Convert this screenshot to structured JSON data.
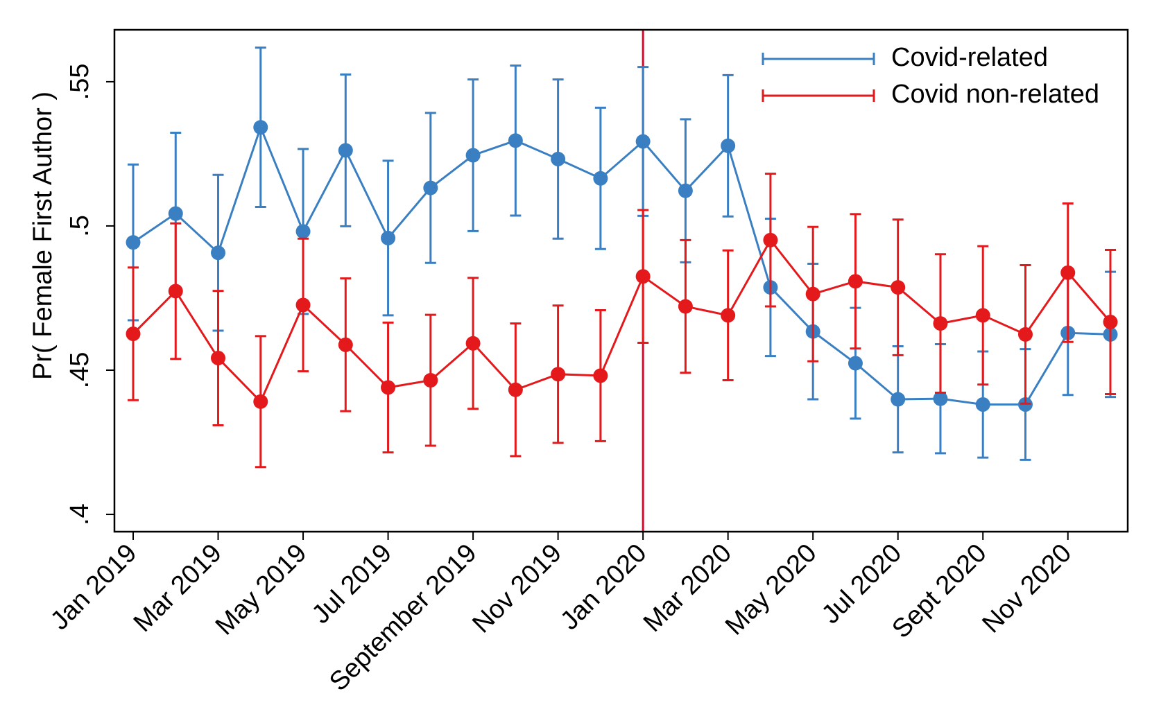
{
  "chart_data": {
    "type": "line",
    "y_label": "Pr( Female First Author )",
    "categories": [
      "Jan 2019",
      null,
      "Mar 2019",
      null,
      "May 2019",
      null,
      "Jul 2019",
      null,
      "September 2019",
      null,
      "Nov 2019",
      null,
      "Jan 2020",
      null,
      "Mar 2020",
      null,
      "May 2020",
      null,
      "Jul 2020",
      null,
      "Sept 2020",
      null,
      "Nov 2020",
      null
    ],
    "series": [
      {
        "name": "Covid-related",
        "color": "#3a7fc1",
        "values": [
          0.4943,
          0.5043,
          0.4907,
          0.5342,
          0.4981,
          0.5262,
          0.4958,
          0.5132,
          0.5245,
          0.5296,
          0.5232,
          0.5165,
          0.5293,
          0.5122,
          0.5278,
          0.4787,
          0.4634,
          0.4524,
          0.4399,
          0.4401,
          0.4381,
          0.4381,
          0.4629,
          0.4624
        ],
        "error": [
          0.027,
          0.028,
          0.027,
          0.0276,
          0.0286,
          0.0263,
          0.0268,
          0.026,
          0.0263,
          0.026,
          0.0276,
          0.0245,
          0.0258,
          0.0248,
          0.0245,
          0.0238,
          0.0235,
          0.0192,
          0.0184,
          0.0189,
          0.0184,
          0.0192,
          0.0215,
          0.0217
        ]
      },
      {
        "name": "Covid non-related",
        "color": "#e3191c",
        "values": [
          0.4626,
          0.4774,
          0.4542,
          0.4391,
          0.4726,
          0.4588,
          0.444,
          0.4465,
          0.4593,
          0.4432,
          0.4486,
          0.4481,
          0.4825,
          0.4721,
          0.469,
          0.4951,
          0.4764,
          0.4808,
          0.4787,
          0.4662,
          0.469,
          0.4624,
          0.4838,
          0.4667
        ],
        "error": [
          0.023,
          0.0235,
          0.0233,
          0.0227,
          0.023,
          0.023,
          0.0225,
          0.0227,
          0.0227,
          0.023,
          0.0238,
          0.0227,
          0.023,
          0.023,
          0.0225,
          0.023,
          0.0233,
          0.0233,
          0.0235,
          0.024,
          0.024,
          0.024,
          0.024,
          0.025
        ]
      }
    ],
    "ylim": [
      0.394,
      0.568
    ],
    "yticks": [
      {
        "value": 0.4,
        "label": ".4"
      },
      {
        "value": 0.45,
        "label": ".45"
      },
      {
        "value": 0.5,
        "label": ".5"
      },
      {
        "value": 0.55,
        "label": ".55"
      }
    ],
    "vline_at": "Jan 2020",
    "vline_color": "#c8102e",
    "legend": "top-right",
    "grid": false
  }
}
